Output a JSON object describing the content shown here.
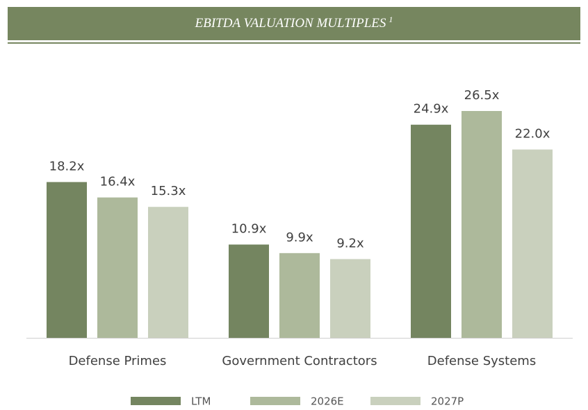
{
  "chart_data": {
    "type": "bar",
    "title": "EBITDA VALUATION MULTIPLES",
    "title_footnote": "1",
    "categories": [
      "Defense Primes",
      "Government Contractors",
      "Defense Systems"
    ],
    "series": [
      {
        "name": "LTM",
        "color": "#748560",
        "values": [
          18.2,
          10.9,
          24.9
        ],
        "value_labels": [
          "18.2x",
          "10.9x",
          "24.9x"
        ]
      },
      {
        "name": "2026E",
        "color": "#adb99b",
        "values": [
          16.4,
          9.9,
          26.5
        ],
        "value_labels": [
          "16.4x",
          "9.9x",
          "26.5x"
        ]
      },
      {
        "name": "2027P",
        "color": "#c9d0bd",
        "values": [
          15.3,
          9.2,
          22.0
        ],
        "value_labels": [
          "15.3x",
          "9.2x",
          "22.0x"
        ]
      }
    ],
    "legend": "bottom"
  }
}
